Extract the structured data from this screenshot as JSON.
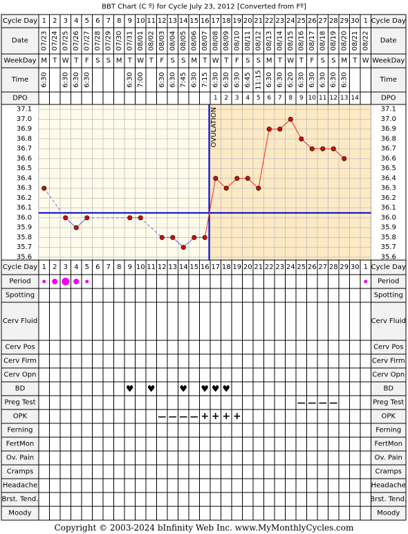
{
  "title": "BBT Chart (C º) for Cycle July 23, 2012  [Converted from Fº]",
  "footer": {
    "copyright": "Copyright © 2003-2024 bInfinity Web Inc.",
    "site": "www.MyMonthlyCycles.com"
  },
  "row_labels": {
    "cycle_day": "Cycle Day",
    "date": "Date",
    "weekday": "WeekDay",
    "time": "Time",
    "dpo": "DPO"
  },
  "ovulation_label": "OVULATION",
  "colors": {
    "pre_ovulation_bg": "#FFFBEB",
    "post_ovulation_bg": "#FDE9C4",
    "grid": "#BDBDBD",
    "coverline": "#0000CC",
    "ovulation_line": "#0000CC",
    "temp_line": "#E8443A",
    "temp_point": "#CC1100",
    "period_dot": "#EE00EE",
    "bd_heart": "#E0306A",
    "opk_symbol": "#9B2FC8",
    "preg_test_symbol": "#9B2FC8",
    "header_bg": "#F2F2F2"
  },
  "days": [
    {
      "day": "1",
      "date": "07/23",
      "weekday": "M",
      "time": "6:30"
    },
    {
      "day": "2",
      "date": "07/24",
      "weekday": "T",
      "time": ""
    },
    {
      "day": "3",
      "date": "07/25",
      "weekday": "W",
      "time": "6:30"
    },
    {
      "day": "4",
      "date": "07/26",
      "weekday": "T",
      "time": "6:30"
    },
    {
      "day": "5",
      "date": "07/27",
      "weekday": "F",
      "time": "6:30"
    },
    {
      "day": "6",
      "date": "07/28",
      "weekday": "S",
      "time": ""
    },
    {
      "day": "7",
      "date": "07/29",
      "weekday": "S",
      "time": ""
    },
    {
      "day": "8",
      "date": "07/30",
      "weekday": "M",
      "time": ""
    },
    {
      "day": "9",
      "date": "07/31",
      "weekday": "T",
      "time": "6:30"
    },
    {
      "day": "10",
      "date": "08/01",
      "weekday": "W",
      "time": "7:00"
    },
    {
      "day": "11",
      "date": "08/02",
      "weekday": "T",
      "time": ""
    },
    {
      "day": "12",
      "date": "08/03",
      "weekday": "F",
      "time": "6:30"
    },
    {
      "day": "13",
      "date": "08/04",
      "weekday": "S",
      "time": "6:30"
    },
    {
      "day": "14",
      "date": "08/05",
      "weekday": "S",
      "time": "7:45"
    },
    {
      "day": "15",
      "date": "08/06",
      "weekday": "M",
      "time": "6:30"
    },
    {
      "day": "16",
      "date": "08/07",
      "weekday": "T",
      "time": "7:15"
    },
    {
      "day": "17",
      "date": "08/08",
      "weekday": "W",
      "time": "6:30"
    },
    {
      "day": "18",
      "date": "08/09",
      "weekday": "T",
      "time": "6:30"
    },
    {
      "day": "19",
      "date": "08/10",
      "weekday": "F",
      "time": "6:30"
    },
    {
      "day": "20",
      "date": "08/11",
      "weekday": "S",
      "time": "6:45"
    },
    {
      "day": "21",
      "date": "08/12",
      "weekday": "S",
      "time": "11:15"
    },
    {
      "day": "22",
      "date": "08/13",
      "weekday": "M",
      "time": "6:30"
    },
    {
      "day": "23",
      "date": "08/14",
      "weekday": "T",
      "time": "6:30"
    },
    {
      "day": "24",
      "date": "08/15",
      "weekday": "W",
      "time": "6:20"
    },
    {
      "day": "25",
      "date": "08/16",
      "weekday": "T",
      "time": "6:30"
    },
    {
      "day": "26",
      "date": "08/17",
      "weekday": "F",
      "time": "6:30"
    },
    {
      "day": "27",
      "date": "08/18",
      "weekday": "S",
      "time": "6:30"
    },
    {
      "day": "28",
      "date": "08/19",
      "weekday": "S",
      "time": "6:30"
    },
    {
      "day": "29",
      "date": "08/20",
      "weekday": "M",
      "time": "6:30"
    },
    {
      "day": "30",
      "date": "08/21",
      "weekday": "T",
      "time": ""
    },
    {
      "day": "1",
      "date": "08/22",
      "weekday": "W",
      "time": ""
    }
  ],
  "dpo": [
    "",
    "",
    "",
    "",
    "",
    "",
    "",
    "",
    "",
    "",
    "",
    "",
    "",
    "",
    "",
    "",
    "1",
    "2",
    "3",
    "4",
    "5",
    "6",
    "7",
    "8",
    "9",
    "10",
    "11",
    "12",
    "13",
    "14",
    ""
  ],
  "chart_data": {
    "type": "line",
    "title": "BBT Chart (C º) for Cycle July 23, 2012  [Converted from Fº]",
    "xlabel": "Cycle Day",
    "ylabel": "",
    "x": [
      1,
      2,
      3,
      4,
      5,
      6,
      7,
      8,
      9,
      10,
      11,
      12,
      13,
      14,
      15,
      16,
      17,
      18,
      19,
      20,
      21,
      22,
      23,
      24,
      25,
      26,
      27,
      28,
      29,
      30,
      31
    ],
    "ylim": [
      35.6,
      37.1
    ],
    "yticks": [
      "37.1",
      "37.0",
      "36.9",
      "36.8",
      "36.7",
      "36.6",
      "36.5",
      "36.4",
      "36.3",
      "36.2",
      "36.1",
      "36.0",
      "35.9",
      "35.8",
      "35.7",
      "35.6"
    ],
    "grid": true,
    "series": [
      {
        "values": [
          36.3,
          null,
          36.0,
          35.9,
          36.0,
          null,
          null,
          null,
          36.0,
          36.0,
          null,
          35.8,
          35.8,
          35.7,
          35.8,
          35.8,
          36.4,
          36.3,
          36.4,
          36.4,
          36.3,
          36.9,
          36.9,
          37.0,
          36.8,
          36.7,
          36.7,
          36.7,
          36.6,
          null,
          null
        ]
      }
    ],
    "coverline": 36.05,
    "ovulation_day": 16
  },
  "symptoms": [
    {
      "label": "Cycle Day",
      "type": "cycle_day"
    },
    {
      "label": "Period",
      "type": "period",
      "marks": {
        "1": "s",
        "2": "m",
        "3": "l",
        "4": "m",
        "5": "s",
        "31": "s"
      }
    },
    {
      "label": "Spotting",
      "type": "blank"
    },
    {
      "label": "Cerv Fluid",
      "type": "blank"
    },
    {
      "label": "Cerv Pos",
      "type": "blank"
    },
    {
      "label": "Cerv Firm",
      "type": "blank"
    },
    {
      "label": "Cerv Opn",
      "type": "blank"
    },
    {
      "label": "BD",
      "type": "heart",
      "marks": {
        "9": "♥",
        "11": "♥",
        "14": "♥",
        "16": "♥",
        "17": "♥",
        "18": "♥"
      }
    },
    {
      "label": "Preg Test",
      "type": "text",
      "marks": {
        "25": "—",
        "26": "—",
        "27": "—",
        "28": "—"
      }
    },
    {
      "label": "OPK",
      "type": "text",
      "marks": {
        "12": "—",
        "13": "—",
        "14": "—",
        "15": "—",
        "16": "+",
        "17": "+",
        "18": "+",
        "19": "+"
      }
    },
    {
      "label": "Ferning",
      "type": "blank"
    },
    {
      "label": "FertMon",
      "type": "blank"
    },
    {
      "label": "Ov. Pain",
      "type": "blank"
    },
    {
      "label": "Cramps",
      "type": "blank"
    },
    {
      "label": "Headache",
      "type": "blank"
    },
    {
      "label": "Brst. Tend.",
      "type": "blank"
    },
    {
      "label": "Moody",
      "type": "blank"
    }
  ]
}
